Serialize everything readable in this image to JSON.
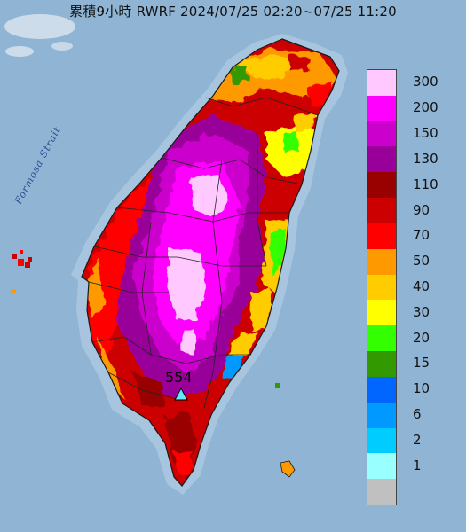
{
  "title": "累積9小時 RWRF 2024/07/25 02:20~07/25 11:20",
  "sea_label": "Formosa Strait",
  "max_marker": {
    "value": "554",
    "icon": "triangle-marker-icon"
  },
  "legend": {
    "items": [
      {
        "label": "300",
        "color": "#ffc8ff"
      },
      {
        "label": "200",
        "color": "#ff00ff"
      },
      {
        "label": "150",
        "color": "#cc00cc"
      },
      {
        "label": "130",
        "color": "#990099"
      },
      {
        "label": "110",
        "color": "#990000"
      },
      {
        "label": "90",
        "color": "#cc0000"
      },
      {
        "label": "70",
        "color": "#ff0000"
      },
      {
        "label": "50",
        "color": "#ff9900"
      },
      {
        "label": "40",
        "color": "#ffcc00"
      },
      {
        "label": "30",
        "color": "#ffff00"
      },
      {
        "label": "20",
        "color": "#33ff00"
      },
      {
        "label": "15",
        "color": "#339900"
      },
      {
        "label": "10",
        "color": "#0066ff"
      },
      {
        "label": "6",
        "color": "#0099ff"
      },
      {
        "label": "2",
        "color": "#00ccff"
      },
      {
        "label": "1",
        "color": "#99ffff"
      },
      {
        "label": "",
        "color": "#c0c0c0"
      }
    ]
  },
  "colors": {
    "sea": "#8fb4d4",
    "land_outline": "#1a1a1a",
    "light_magenta": "#ffc8ff",
    "magenta": "#ff00ff",
    "purple": "#cc00cc",
    "dark_purple": "#990099",
    "dark_red": "#990000",
    "red": "#cc0000",
    "bright_red": "#ff0000",
    "orange": "#ff9900",
    "amber": "#ffcc00",
    "yellow": "#ffff00",
    "green": "#33ff00",
    "dark_green": "#339900",
    "blue": "#0099ff"
  }
}
